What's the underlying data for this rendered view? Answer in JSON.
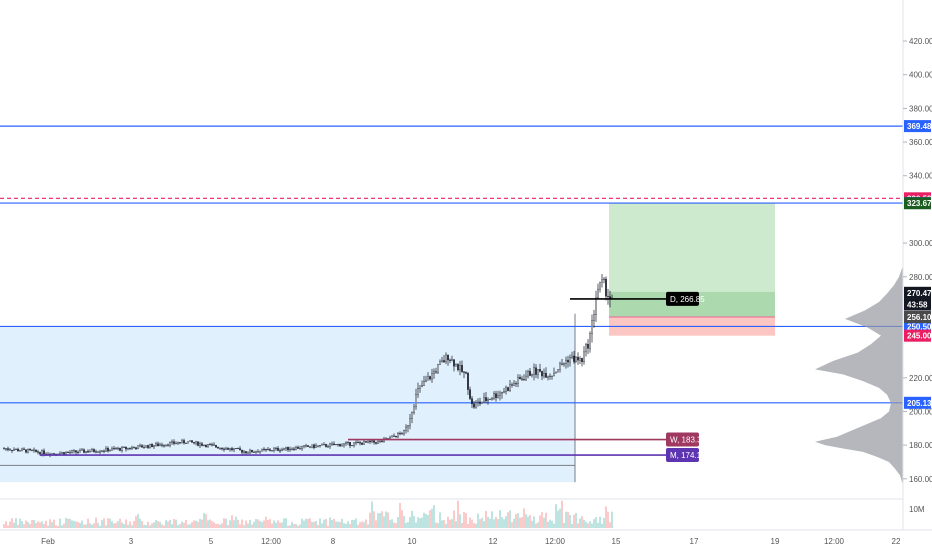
{
  "chart_data": {
    "type": "candlestick",
    "title": "",
    "xlabel": "",
    "ylabel": "",
    "ylim": [
      148,
      442
    ],
    "y_ticks": [
      "420.00",
      "400.00",
      "380.00",
      "360.00",
      "340.00",
      "300.00",
      "280.00",
      "220.00",
      "200.00",
      "180.00",
      "160.00"
    ],
    "x_ticks": [
      "Feb",
      "3",
      "5",
      "12:00",
      "8",
      "10",
      "12",
      "12:00",
      "15",
      "17",
      "19",
      "12:00",
      "22"
    ],
    "volume_label": "10M",
    "price_anchors": [
      {
        "t": 0.0,
        "p": 178
      },
      {
        "t": 0.08,
        "p": 175
      },
      {
        "t": 0.2,
        "p": 178
      },
      {
        "t": 0.3,
        "p": 182
      },
      {
        "t": 0.4,
        "p": 176
      },
      {
        "t": 0.5,
        "p": 179
      },
      {
        "t": 0.58,
        "p": 181
      },
      {
        "t": 0.62,
        "p": 182
      },
      {
        "t": 0.66,
        "p": 188
      },
      {
        "t": 0.68,
        "p": 212
      },
      {
        "t": 0.73,
        "p": 233
      },
      {
        "t": 0.76,
        "p": 221
      },
      {
        "t": 0.77,
        "p": 203
      },
      {
        "t": 0.82,
        "p": 212
      },
      {
        "t": 0.87,
        "p": 224
      },
      {
        "t": 0.9,
        "p": 222
      },
      {
        "t": 0.93,
        "p": 232
      },
      {
        "t": 0.95,
        "p": 230
      },
      {
        "t": 0.965,
        "p": 246
      },
      {
        "t": 0.975,
        "p": 272
      },
      {
        "t": 0.985,
        "p": 276
      },
      {
        "t": 1.0,
        "p": 265
      }
    ],
    "horizontal_levels": [
      {
        "name": "level-369",
        "value": 369.48,
        "label": "369.48",
        "color": "#2962ff",
        "style": "solid"
      },
      {
        "name": "level-326",
        "value": 326.59,
        "label": "326.59",
        "color": "#e91e63",
        "style": "dashed"
      },
      {
        "name": "level-323-78",
        "value": 323.78,
        "label": "323.78",
        "color": "#2962ff",
        "style": "solid"
      },
      {
        "name": "level-250",
        "value": 250.5,
        "label": "250.50",
        "color": "#2962ff",
        "style": "solid"
      },
      {
        "name": "level-205",
        "value": 205.13,
        "label": "205.13",
        "color": "#2962ff",
        "style": "solid"
      }
    ],
    "axis_tags": [
      {
        "value": 323.67,
        "label": "323.67",
        "color": "#1b5e20"
      },
      {
        "value": 270.47,
        "label": "270.47",
        "color": "#131722"
      },
      {
        "value": 263.5,
        "label": "43:58",
        "color": "#131722"
      },
      {
        "value": 256.1,
        "label": "256.10",
        "color": "#4a4a4a"
      },
      {
        "value": 245.0,
        "label": "245.00",
        "color": "#e91e63"
      }
    ],
    "position": {
      "entry": 256.1,
      "target": 323.67,
      "stop": 245.0
    },
    "vwap_lines": [
      {
        "name": "daily",
        "value": 266.85,
        "label": "D, 266.85",
        "color": "#000000"
      },
      {
        "name": "weekly",
        "value": 183.33,
        "label": "W, 183.33",
        "color": "#a0395f"
      },
      {
        "name": "monthly",
        "value": 174.12,
        "label": "M, 174.12",
        "color": "#5e35b1"
      }
    ],
    "range_box": {
      "top": 250.5,
      "bottom": 158
    }
  }
}
